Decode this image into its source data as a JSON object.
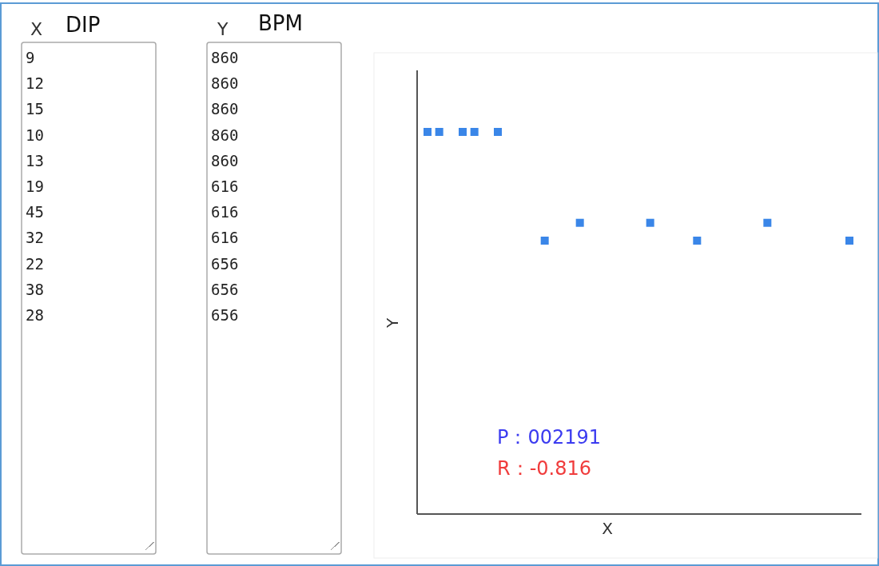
{
  "chart_data": {
    "type": "other",
    "xlabel": "X",
    "ylabel": "Y",
    "categories": [
      "9",
      "12",
      "15",
      "10",
      "13",
      "19",
      "45",
      "32",
      "22",
      "38",
      "28"
    ],
    "values": [
      860,
      860,
      860,
      860,
      860,
      616,
      616,
      616,
      656,
      656,
      656
    ],
    "color": "#3a86e8",
    "data_labels": true,
    "annotations": [
      "X",
      "DIP",
      "Y",
      "BPM",
      "P：002191",
      "R：-0.816"
    ]
  }
}
